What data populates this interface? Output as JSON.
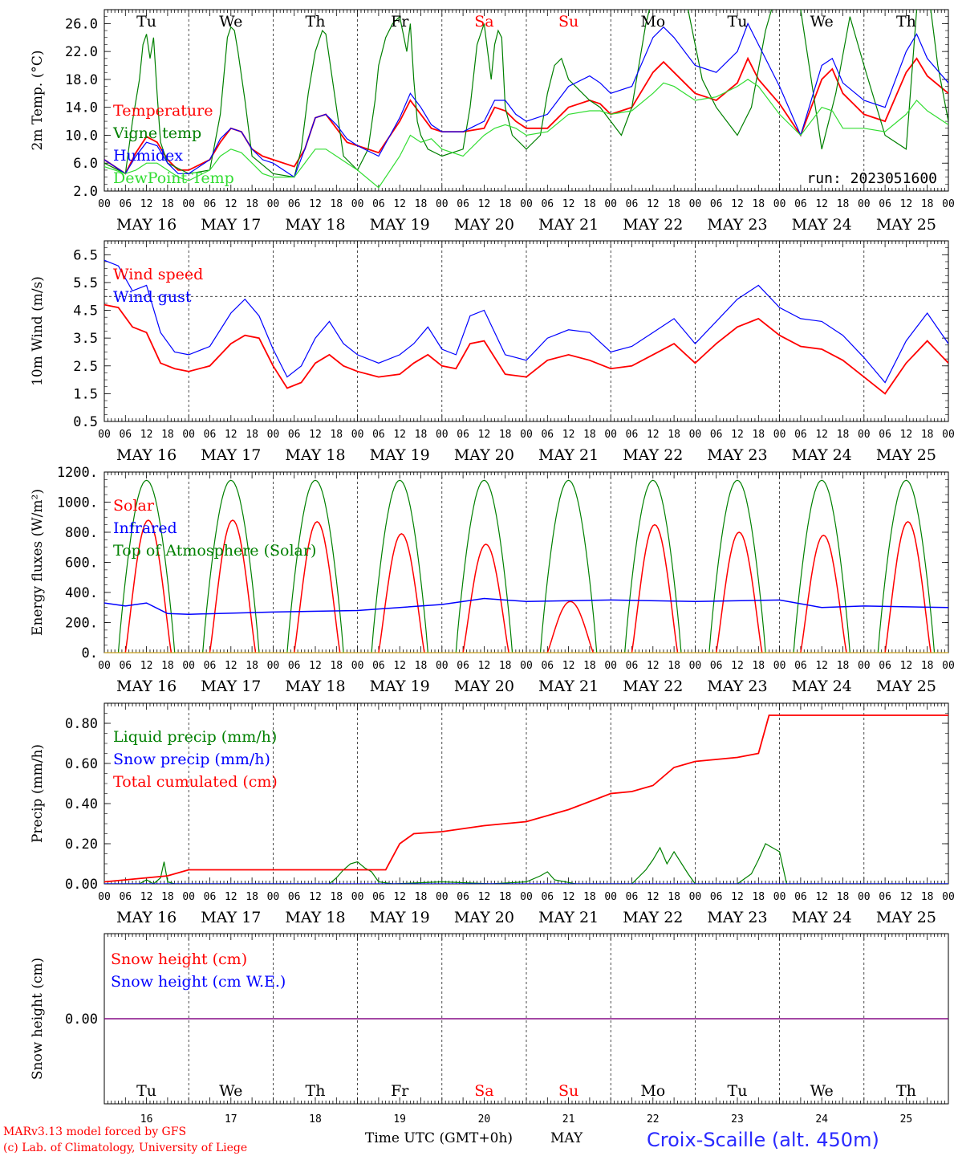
{
  "days": {
    "names": [
      "Tu",
      "We",
      "Th",
      "Fr",
      "Sa",
      "Su",
      "Mo",
      "Tu",
      "We",
      "Th"
    ],
    "date_labels": [
      "MAY 16",
      "MAY 17",
      "MAY 18",
      "MAY 19",
      "MAY 20",
      "MAY 21",
      "MAY 22",
      "MAY 23",
      "MAY 24",
      "MAY 25"
    ],
    "day_numbers": [
      "16",
      "17",
      "18",
      "19",
      "20",
      "21",
      "22",
      "23",
      "24",
      "25"
    ],
    "weekend_color": "#ff0000",
    "weekend_index": [
      4,
      5
    ]
  },
  "hour_ticks": [
    "00",
    "06",
    "12",
    "18"
  ],
  "run_label": "run: 2023051600",
  "footer": {
    "model_line": "MARv3.13 model forced by GFS",
    "credit_line": "(c) Lab. of Climatology, University of Liege",
    "time_axis_label": "Time UTC (GMT+0h)",
    "month_label": "MAY",
    "station_label": "Croix-Scaille (alt. 450m)"
  },
  "colors": {
    "temperature": "#ff0000",
    "vigne": "#008000",
    "humidex": "#0000ff",
    "dewpoint": "#33dd33",
    "wind": "#ff0000",
    "gust": "#0000ff",
    "solar": "#ff0000",
    "infrared": "#0000ff",
    "toa": "#008000",
    "liquid": "#008000",
    "snowprecip": "#0000ff",
    "cumul": "#ff0000",
    "snowheight": "#800080"
  },
  "chart_data": [
    {
      "type": "line",
      "ylabel": "2m Temp. (°C)",
      "ylim": [
        2,
        28
      ],
      "yticks": [
        "2.0",
        "6.0",
        "10.0",
        "14.0",
        "18.0",
        "22.0",
        "26.0"
      ],
      "x_unit": "hours since MAY 16 00 UTC",
      "series": [
        {
          "name": "Temperature",
          "x": [
            0,
            6,
            9,
            12,
            15,
            18,
            21,
            24,
            30,
            33,
            36,
            39,
            42,
            45,
            48,
            54,
            57,
            60,
            63,
            66,
            69,
            72,
            78,
            84,
            87,
            90,
            93,
            96,
            102,
            108,
            111,
            114,
            117,
            120,
            126,
            132,
            138,
            141,
            144,
            150,
            156,
            159,
            162,
            168,
            174,
            180,
            183,
            186,
            192,
            198,
            204,
            207,
            210,
            216,
            222,
            228,
            231,
            234,
            240
          ],
          "values": [
            6.5,
            4.5,
            7.5,
            9.8,
            9,
            6.5,
            5,
            5,
            6.5,
            9,
            11,
            10.5,
            8,
            7,
            6.5,
            5.5,
            8,
            12.5,
            13,
            11,
            9,
            8.5,
            7.5,
            12,
            15,
            13,
            11,
            10.5,
            10.5,
            11,
            14,
            13.5,
            12,
            11,
            11,
            14,
            15,
            14.5,
            13,
            14,
            19,
            20.5,
            19,
            16,
            15,
            17.5,
            21,
            18,
            14.5,
            10,
            18,
            19.5,
            16,
            13,
            12,
            19,
            21,
            18.5,
            16
          ]
        },
        {
          "name": "Vigne temp",
          "x": [
            0,
            6,
            8,
            10,
            11,
            12,
            13,
            14,
            15,
            16,
            18,
            24,
            30,
            33,
            35,
            36,
            37,
            38,
            40,
            42,
            48,
            54,
            56,
            58,
            60,
            62,
            63,
            64,
            66,
            68,
            72,
            75,
            77,
            78,
            80,
            82,
            84,
            85,
            86,
            87,
            88,
            89,
            90,
            92,
            96,
            102,
            104,
            106,
            108,
            109,
            110,
            111,
            112,
            113,
            114,
            116,
            120,
            124,
            126,
            128,
            130,
            132,
            136,
            138,
            141,
            144,
            147,
            150,
            154,
            158,
            162,
            166,
            170,
            174,
            177,
            180,
            184,
            188,
            192,
            195,
            198,
            204,
            208,
            212,
            216,
            222,
            228,
            231,
            234,
            237,
            240
          ],
          "values": [
            6,
            4.5,
            12,
            18,
            23,
            24.5,
            21,
            24,
            16,
            9,
            6,
            4.5,
            5,
            13,
            24,
            25.5,
            25,
            22,
            15,
            7,
            4.5,
            4,
            8,
            16,
            22,
            25,
            24.5,
            21,
            14,
            7,
            5,
            8,
            15,
            20,
            24,
            26,
            27,
            24.5,
            22,
            26,
            18,
            12,
            10,
            8,
            7,
            8,
            14,
            23,
            26,
            22,
            18,
            23,
            25,
            24,
            14,
            10,
            8,
            10,
            16,
            20,
            21,
            18,
            16,
            15,
            14,
            12,
            10,
            14,
            26,
            34,
            34,
            28,
            18,
            14,
            12,
            10,
            14,
            25,
            32,
            34,
            28,
            8,
            16,
            27,
            20,
            10,
            8,
            28,
            32,
            20,
            12
          ]
        },
        {
          "name": "Humidex",
          "x": [
            0,
            6,
            9,
            12,
            15,
            18,
            21,
            24,
            30,
            33,
            36,
            39,
            42,
            45,
            48,
            54,
            57,
            60,
            63,
            66,
            69,
            72,
            78,
            84,
            87,
            90,
            93,
            96,
            102,
            108,
            111,
            114,
            117,
            120,
            126,
            132,
            138,
            141,
            144,
            150,
            156,
            159,
            162,
            168,
            174,
            180,
            183,
            186,
            192,
            198,
            204,
            207,
            210,
            216,
            222,
            228,
            231,
            234,
            240
          ],
          "values": [
            6.5,
            4.5,
            7,
            9,
            8.5,
            6,
            4.5,
            4.5,
            6.5,
            9.5,
            11,
            10.5,
            8,
            6.5,
            6,
            4,
            8,
            12.5,
            13,
            11.5,
            9.5,
            8.5,
            7,
            12.5,
            16,
            14,
            11.5,
            10.5,
            10.5,
            12,
            15,
            15,
            13,
            12,
            13,
            17,
            18.5,
            17.5,
            16,
            17,
            24,
            25.5,
            24,
            20,
            19,
            22,
            26,
            23,
            17,
            10,
            20,
            21,
            17.5,
            15,
            14,
            22,
            24.5,
            21,
            17.5
          ]
        },
        {
          "name": "DewPoint Temp",
          "x": [
            0,
            6,
            9,
            12,
            15,
            18,
            21,
            24,
            30,
            33,
            36,
            39,
            42,
            45,
            48,
            54,
            57,
            60,
            63,
            66,
            69,
            72,
            78,
            84,
            87,
            90,
            93,
            96,
            102,
            108,
            111,
            114,
            117,
            120,
            126,
            132,
            138,
            141,
            144,
            150,
            156,
            159,
            162,
            168,
            174,
            180,
            183,
            186,
            192,
            198,
            204,
            207,
            210,
            216,
            222,
            228,
            231,
            234,
            240
          ],
          "values": [
            5.5,
            4.5,
            5,
            6,
            6,
            5,
            4,
            3.5,
            5,
            7,
            8,
            7.5,
            6,
            4.5,
            4,
            4,
            6,
            8,
            8,
            7,
            6,
            5,
            2.5,
            7,
            10,
            9,
            9.5,
            8,
            7,
            10,
            11,
            11.5,
            11,
            10,
            10.5,
            13,
            13.5,
            13.5,
            13,
            13.5,
            16,
            17.5,
            17,
            15,
            15.5,
            17,
            18,
            17,
            13,
            10,
            14,
            13.5,
            11,
            11,
            10.5,
            13,
            15,
            13.5,
            11.5
          ]
        }
      ]
    },
    {
      "type": "line",
      "ylabel": "10m Wind (m/s)",
      "ylim": [
        0.5,
        7
      ],
      "yticks": [
        "0.5",
        "1.5",
        "2.5",
        "3.5",
        "4.5",
        "5.5",
        "6.5"
      ],
      "reference_line": 5,
      "x_unit": "hours since MAY 16 00 UTC",
      "series": [
        {
          "name": "Wind speed",
          "x": [
            0,
            4,
            8,
            12,
            16,
            20,
            24,
            30,
            36,
            40,
            44,
            48,
            52,
            56,
            60,
            64,
            68,
            72,
            78,
            84,
            88,
            92,
            96,
            100,
            104,
            108,
            114,
            120,
            126,
            132,
            138,
            144,
            150,
            156,
            162,
            168,
            174,
            180,
            186,
            192,
            198,
            204,
            210,
            216,
            222,
            228,
            234,
            240
          ],
          "values": [
            4.7,
            4.6,
            3.9,
            3.7,
            2.6,
            2.4,
            2.3,
            2.5,
            3.3,
            3.6,
            3.5,
            2.5,
            1.7,
            1.9,
            2.6,
            2.9,
            2.5,
            2.3,
            2.1,
            2.2,
            2.6,
            2.9,
            2.5,
            2.4,
            3.3,
            3.4,
            2.2,
            2.1,
            2.7,
            2.9,
            2.7,
            2.4,
            2.5,
            2.9,
            3.3,
            2.6,
            3.3,
            3.9,
            4.2,
            3.6,
            3.2,
            3.1,
            2.7,
            2.1,
            1.5,
            2.6,
            3.4,
            2.6
          ]
        },
        {
          "name": "Wind gust",
          "x": [
            0,
            4,
            8,
            12,
            16,
            20,
            24,
            30,
            36,
            40,
            44,
            48,
            52,
            56,
            60,
            64,
            68,
            72,
            78,
            84,
            88,
            92,
            96,
            100,
            104,
            108,
            114,
            120,
            126,
            132,
            138,
            144,
            150,
            156,
            162,
            168,
            174,
            180,
            186,
            192,
            198,
            204,
            210,
            216,
            222,
            228,
            234,
            240
          ],
          "values": [
            6.3,
            6.1,
            5.2,
            5.4,
            3.7,
            3.0,
            2.9,
            3.2,
            4.4,
            4.9,
            4.3,
            3.1,
            2.1,
            2.5,
            3.5,
            4.1,
            3.3,
            2.9,
            2.6,
            2.9,
            3.3,
            3.9,
            3.1,
            2.9,
            4.3,
            4.5,
            2.9,
            2.7,
            3.5,
            3.8,
            3.7,
            3.0,
            3.2,
            3.7,
            4.2,
            3.3,
            4.1,
            4.9,
            5.4,
            4.6,
            4.2,
            4.1,
            3.6,
            2.8,
            1.9,
            3.4,
            4.4,
            3.3
          ]
        }
      ]
    },
    {
      "type": "line",
      "ylabel": "Energy fluxes (W/m²)",
      "ylim": [
        0,
        1200
      ],
      "yticks": [
        "0.",
        "200.",
        "400.",
        "600.",
        "800.",
        "1000.",
        "1200."
      ],
      "x_unit": "hours since MAY 16 00 UTC",
      "day_peaks": {
        "toa": 1145,
        "solar": [
          880,
          880,
          870,
          790,
          720,
          340,
          850,
          800,
          780,
          870
        ]
      },
      "series": [
        {
          "name": "Solar",
          "x": [],
          "values": []
        },
        {
          "name": "Infrared",
          "x": [
            0,
            6,
            12,
            18,
            24,
            48,
            72,
            96,
            108,
            120,
            144,
            168,
            192,
            204,
            216,
            240
          ],
          "values": [
            330,
            310,
            330,
            260,
            255,
            270,
            280,
            320,
            360,
            340,
            350,
            340,
            350,
            300,
            310,
            300
          ]
        },
        {
          "name": "Top of Atmosphere (Solar)",
          "x": [],
          "values": []
        }
      ]
    },
    {
      "type": "line",
      "ylabel": "Precip (mm/h)",
      "ylim": [
        0,
        0.9
      ],
      "yticks": [
        "0.00",
        "0.20",
        "0.40",
        "0.60",
        "0.80"
      ],
      "x_unit": "hours since MAY 16 00 UTC",
      "series": [
        {
          "name": "Liquid precip (mm/h)",
          "x": [
            0,
            10,
            12,
            14,
            16,
            17,
            18,
            20,
            24,
            64,
            66,
            68,
            70,
            72,
            74,
            76,
            78,
            82,
            96,
            110,
            120,
            124,
            126,
            128,
            134,
            150,
            154,
            156,
            158,
            160,
            162,
            166,
            168,
            180,
            184,
            186,
            188,
            190,
            192,
            194,
            240
          ],
          "values": [
            0,
            0,
            0.02,
            0,
            0.03,
            0.11,
            0.01,
            0,
            0,
            0,
            0.03,
            0.07,
            0.1,
            0.11,
            0.08,
            0.06,
            0.01,
            0,
            0.01,
            0,
            0.01,
            0.04,
            0.06,
            0.02,
            0,
            0,
            0.07,
            0.12,
            0.18,
            0.1,
            0.16,
            0.05,
            0,
            0,
            0.05,
            0.12,
            0.2,
            0.18,
            0.16,
            0,
            0
          ]
        },
        {
          "name": "Snow precip (mm/h)",
          "x": [
            0,
            240
          ],
          "values": [
            0,
            0
          ]
        },
        {
          "name": "Total cumulated (cm)",
          "x": [
            0,
            12,
            18,
            24,
            48,
            72,
            80,
            84,
            88,
            96,
            108,
            120,
            132,
            144,
            150,
            156,
            162,
            168,
            174,
            180,
            186,
            189,
            240
          ],
          "values": [
            0.01,
            0.03,
            0.04,
            0.07,
            0.07,
            0.07,
            0.07,
            0.2,
            0.25,
            0.26,
            0.29,
            0.31,
            0.37,
            0.45,
            0.46,
            0.49,
            0.58,
            0.61,
            0.62,
            0.63,
            0.65,
            0.84,
            0.84
          ]
        }
      ]
    },
    {
      "type": "line",
      "ylabel": "Snow height (cm)",
      "ylim": [
        -1,
        1
      ],
      "yticks": [
        "0.00"
      ],
      "x_unit": "hours since MAY 16 00 UTC",
      "series": [
        {
          "name": "Snow height (cm)",
          "x": [
            0,
            240
          ],
          "values": [
            0,
            0
          ]
        },
        {
          "name": "Snow height (cm W.E.)",
          "x": [
            0,
            240
          ],
          "values": [
            0,
            0
          ]
        }
      ]
    }
  ]
}
